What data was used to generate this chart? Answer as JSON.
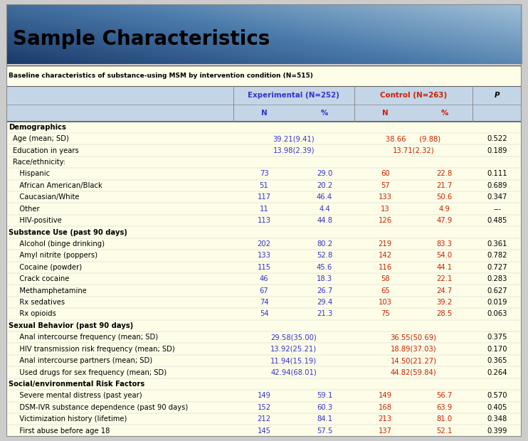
{
  "title": "Sample Characteristics",
  "subtitle": "Baseline characteristics of substance-using MSM by intervention condition (N=515)",
  "exp_color": "#3333cc",
  "ctrl_color": "#cc2200",
  "rows": [
    {
      "type": "section",
      "label": "Demographics"
    },
    {
      "type": "data_span",
      "label": "Age (mean; SD)",
      "exp": "39.21(9.41)",
      "ctrl": "38.66      (9.88)",
      "p": "0.522"
    },
    {
      "type": "data_span",
      "label": "Education in years",
      "exp": "13.98(2.39)",
      "ctrl": "13.71(2.32)",
      "p": "0.189"
    },
    {
      "type": "label_only",
      "label": "Race/ethnicity:"
    },
    {
      "type": "data4",
      "label": "   Hispanic",
      "exp_n": "73",
      "exp_pct": "29.0",
      "ctrl_n": "60",
      "ctrl_pct": "22.8",
      "p": "0.111"
    },
    {
      "type": "data4",
      "label": "   African American/Black",
      "exp_n": "51",
      "exp_pct": "20.2",
      "ctrl_n": "57",
      "ctrl_pct": "21.7",
      "p": "0.689"
    },
    {
      "type": "data4",
      "label": "   Caucasian/White",
      "exp_n": "117",
      "exp_pct": "46.4",
      "ctrl_n": "133",
      "ctrl_pct": "50.6",
      "p": "0.347"
    },
    {
      "type": "data4",
      "label": "   Other",
      "exp_n": "11",
      "exp_pct": "4.4",
      "ctrl_n": "13",
      "ctrl_pct": "4.9",
      "p": "---"
    },
    {
      "type": "data4",
      "label": "   HIV-positive",
      "exp_n": "113",
      "exp_pct": "44.8",
      "ctrl_n": "126",
      "ctrl_pct": "47.9",
      "p": "0.485"
    },
    {
      "type": "section",
      "label": "Substance Use (past 90 days)"
    },
    {
      "type": "data4",
      "label": "   Alcohol (binge drinking)",
      "exp_n": "202",
      "exp_pct": "80.2",
      "ctrl_n": "219",
      "ctrl_pct": "83.3",
      "p": "0.361"
    },
    {
      "type": "data4",
      "label": "   Amyl nitrite (poppers)",
      "exp_n": "133",
      "exp_pct": "52.8",
      "ctrl_n": "142",
      "ctrl_pct": "54.0",
      "p": "0.782"
    },
    {
      "type": "data4",
      "label": "   Cocaine (powder)",
      "exp_n": "115",
      "exp_pct": "45.6",
      "ctrl_n": "116",
      "ctrl_pct": "44.1",
      "p": "0.727"
    },
    {
      "type": "data4",
      "label": "   Crack cocaine",
      "exp_n": "46",
      "exp_pct": "18.3",
      "ctrl_n": "58",
      "ctrl_pct": "22.1",
      "p": "0.283"
    },
    {
      "type": "data4",
      "label": "   Methamphetamine",
      "exp_n": "67",
      "exp_pct": "26.7",
      "ctrl_n": "65",
      "ctrl_pct": "24.7",
      "p": "0.627"
    },
    {
      "type": "data4",
      "label": "   Rx sedatives",
      "exp_n": "74",
      "exp_pct": "29.4",
      "ctrl_n": "103",
      "ctrl_pct": "39.2",
      "p": "0.019"
    },
    {
      "type": "data4",
      "label": "   Rx opioids",
      "exp_n": "54",
      "exp_pct": "21.3",
      "ctrl_n": "75",
      "ctrl_pct": "28.5",
      "p": "0.063"
    },
    {
      "type": "section",
      "label": "Sexual Behavior (past 90 days)"
    },
    {
      "type": "data_span",
      "label": "   Anal intercourse frequency (mean; SD)",
      "exp": "29.58(35.00)",
      "ctrl": "36.55(50.69)",
      "p": "0.375"
    },
    {
      "type": "data_span",
      "label": "   HIV transmission risk frequency (mean; SD)",
      "exp": "13.92(25.21)",
      "ctrl": "18.89(37.03)",
      "p": "0.170"
    },
    {
      "type": "data_span",
      "label": "   Anal intercourse partners (mean; SD)",
      "exp": "11.94(15.19)",
      "ctrl": "14.50(21.27)",
      "p": "0.365"
    },
    {
      "type": "data_span",
      "label": "   Used drugs for sex frequency (mean; SD)",
      "exp": "42.94(68.01)",
      "ctrl": "44.82(59.84)",
      "p": "0.264"
    },
    {
      "type": "section",
      "label": "Social/environmental Risk Factors"
    },
    {
      "type": "data4",
      "label": "   Severe mental distress (past year)",
      "exp_n": "149",
      "exp_pct": "59.1",
      "ctrl_n": "149",
      "ctrl_pct": "56.7",
      "p": "0.570"
    },
    {
      "type": "data4",
      "label": "   DSM-IVR substance dependence (past 90 days)",
      "exp_n": "152",
      "exp_pct": "60.3",
      "ctrl_n": "168",
      "ctrl_pct": "63.9",
      "p": "0.405"
    },
    {
      "type": "data4",
      "label": "   Victimization history (lifetime)",
      "exp_n": "212",
      "exp_pct": "84.1",
      "ctrl_n": "213",
      "ctrl_pct": "81.0",
      "p": "0.348"
    },
    {
      "type": "data4",
      "label": "   First abuse before age 18",
      "exp_n": "145",
      "exp_pct": "57.5",
      "ctrl_n": "137",
      "ctrl_pct": "52.1",
      "p": "0.399"
    }
  ]
}
